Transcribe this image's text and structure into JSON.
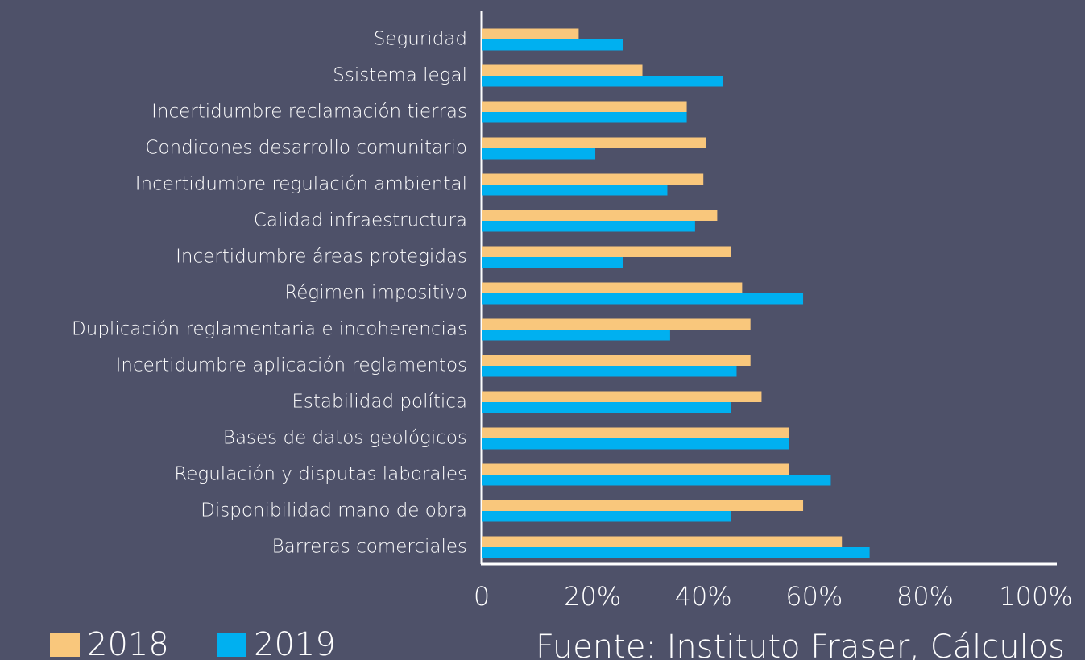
{
  "chart_data": {
    "type": "bar",
    "orientation": "horizontal",
    "categories": [
      "Seguridad",
      "Ssistema legal",
      "Incertidumbre reclamación tierras",
      "Condicones desarrollo comunitario",
      "Incertidumbre regulación ambiental",
      "Calidad infraestructura",
      "Incertidumbre áreas protegidas",
      "Régimen impositivo",
      "Duplicación reglamentaria e incoherencias",
      "Incertidumbre aplicación reglamentos",
      "Estabilidad política",
      "Bases de datos geológicos",
      "Regulación y disputas laborales",
      "Disponibilidad mano de obra",
      "Barreras comerciales"
    ],
    "series": [
      {
        "name": "2018",
        "color": "#f9c77c",
        "values": [
          17.5,
          29,
          37,
          40.5,
          40,
          42.5,
          45,
          47,
          48.5,
          48.5,
          50.5,
          55.5,
          55.5,
          58,
          65
        ]
      },
      {
        "name": "2019",
        "color": "#00b0f0",
        "values": [
          25.5,
          43.5,
          37,
          20.5,
          33.5,
          38.5,
          25.5,
          58,
          34,
          46,
          45,
          55.5,
          63,
          45,
          70
        ]
      }
    ],
    "xlim": [
      0,
      100
    ],
    "xticks": [
      0,
      {
        "value": 20,
        "label": "20%"
      },
      {
        "value": 40,
        "label": "40%"
      },
      {
        "value": 60,
        "label": "60%"
      },
      {
        "value": 80,
        "label": "80%"
      },
      {
        "value": 100,
        "label": "100%"
      }
    ],
    "legend": "bottom-left",
    "source": "Fuente: Instituto Fraser, Cálculos"
  }
}
